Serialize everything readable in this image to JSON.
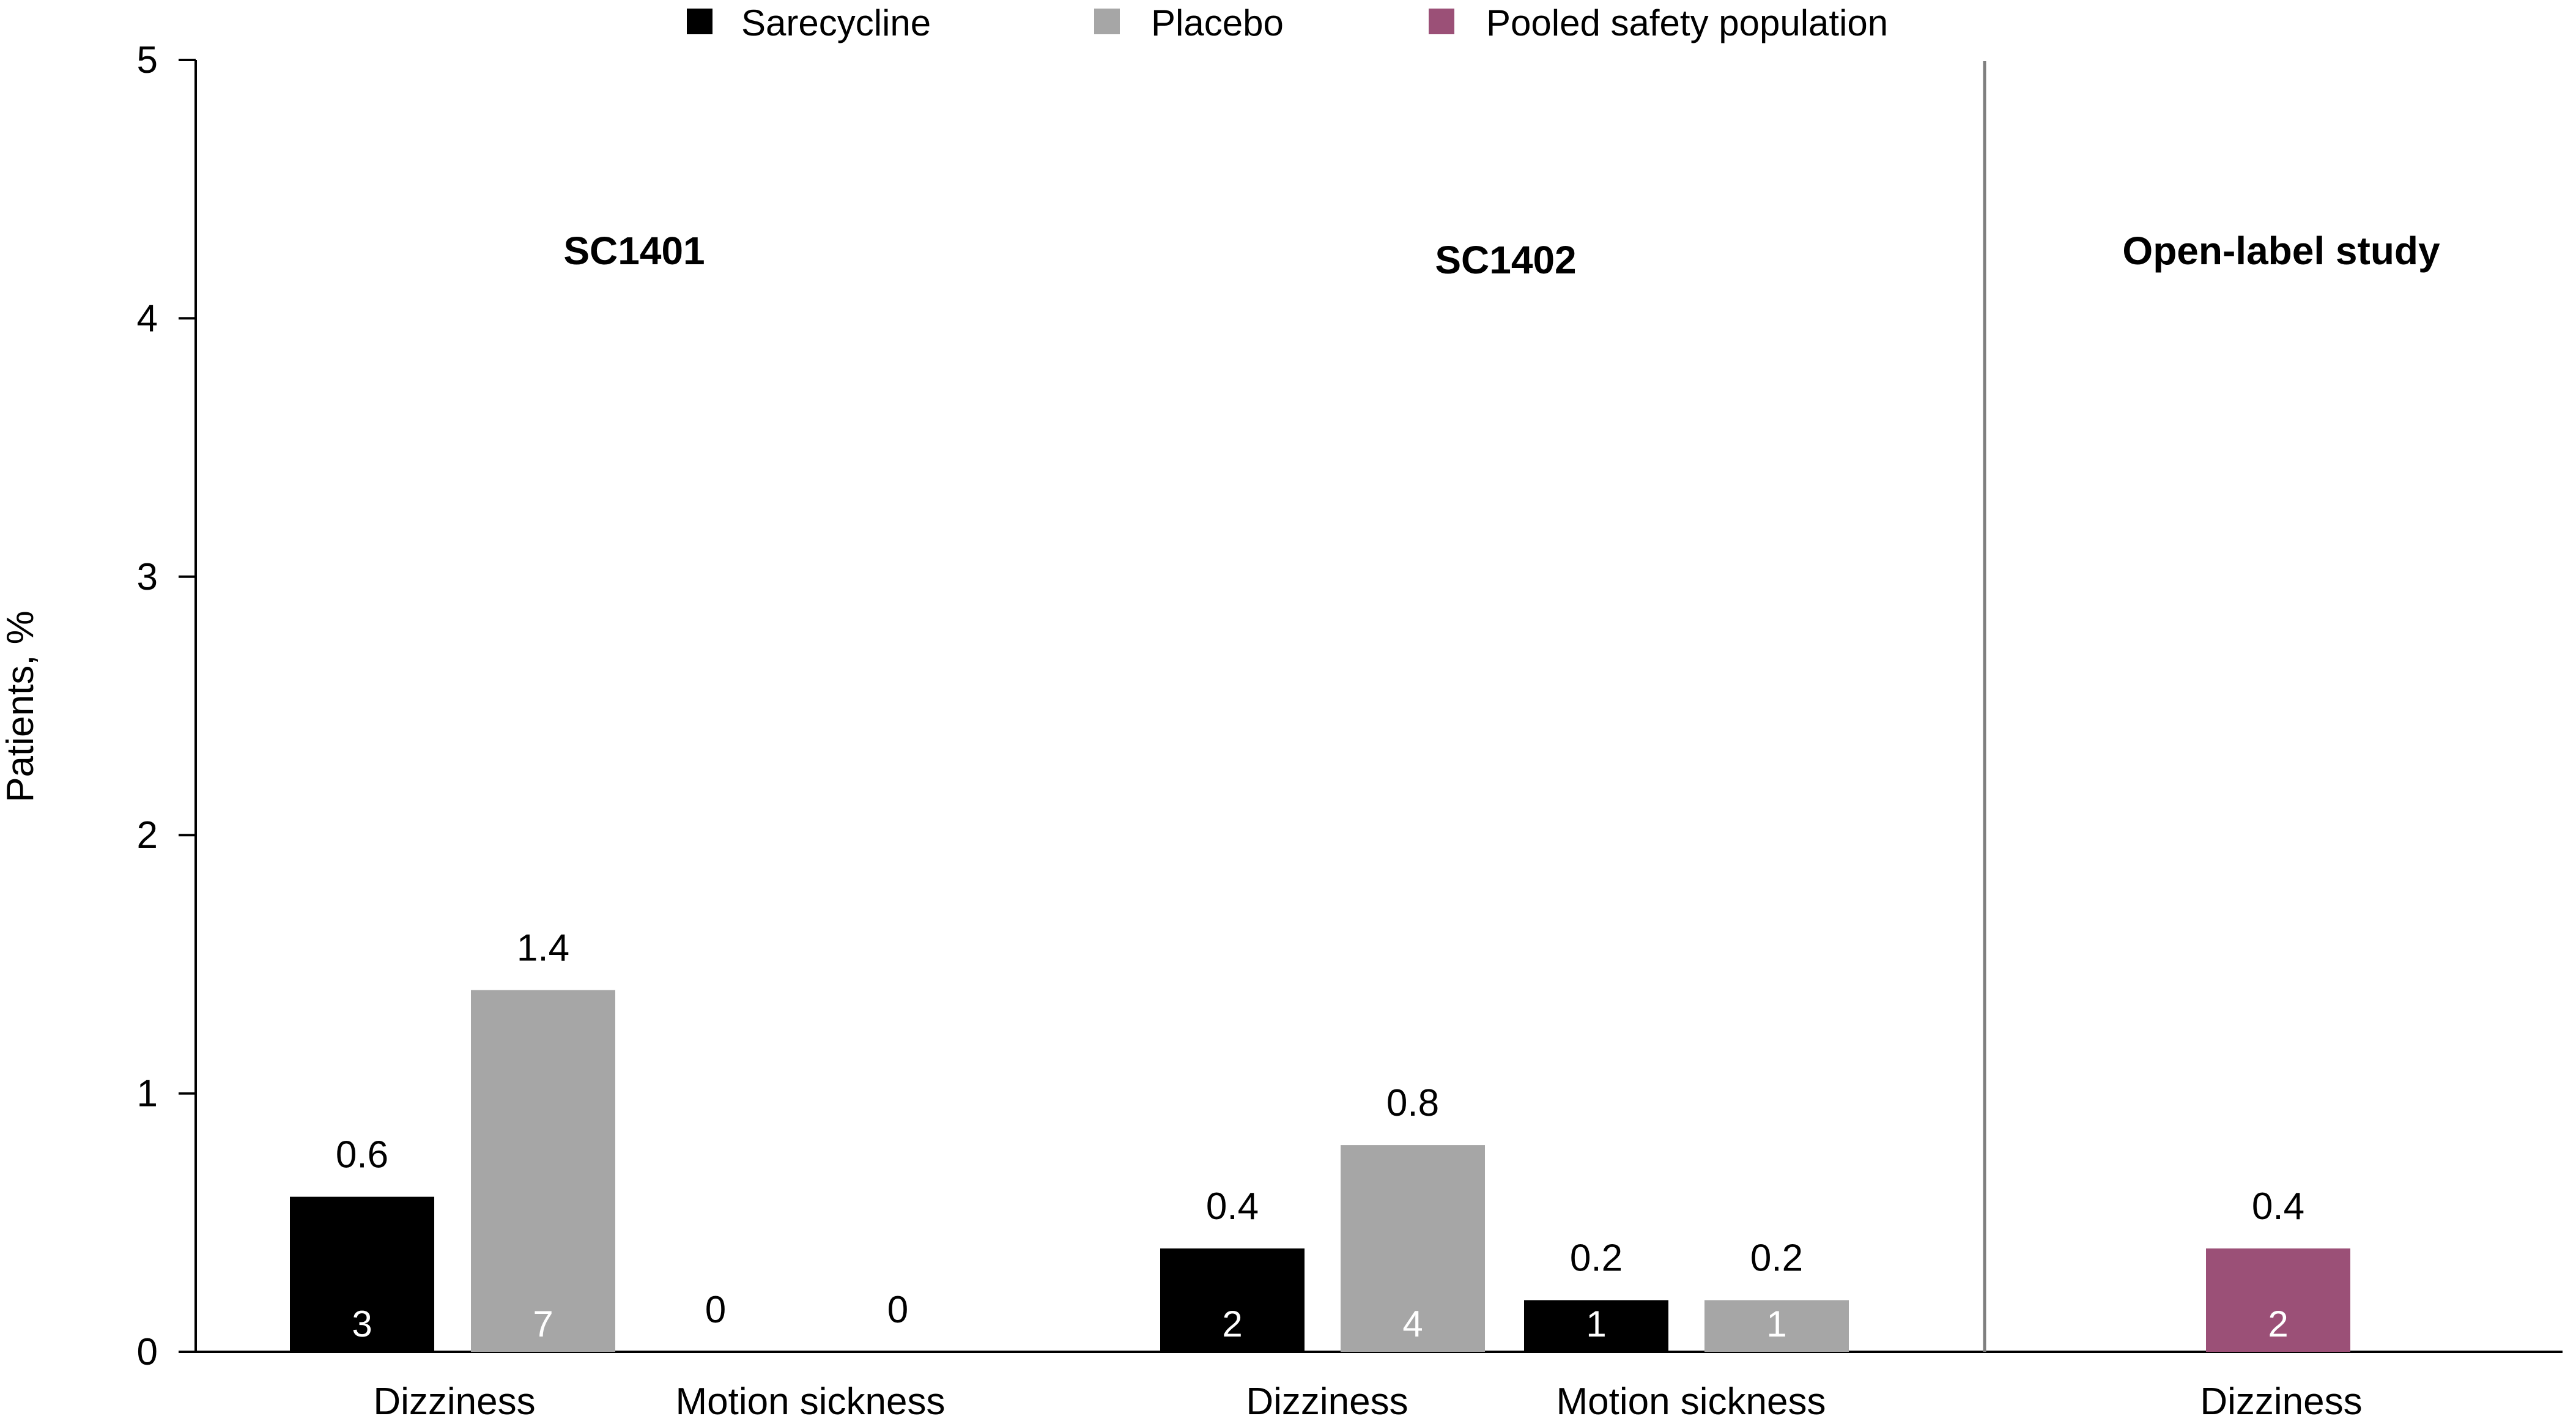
{
  "chart_data": {
    "type": "bar",
    "title": "",
    "xlabel": "",
    "ylabel": "Patients, %",
    "ylim": [
      0,
      5
    ],
    "yticks": [
      0,
      1,
      2,
      3,
      4,
      5
    ],
    "grid": false,
    "legend_position": "top",
    "series": [
      {
        "key": "sarecycline",
        "name": "Sarecycline",
        "color": "#000000",
        "label_color": "#ffffff"
      },
      {
        "key": "placebo",
        "name": "Placebo",
        "color": "#a6a6a6",
        "label_color": "#ffffff"
      },
      {
        "key": "pooled",
        "name": "Pooled safety population",
        "color": "#9b5077",
        "label_color": "#ffffff"
      }
    ],
    "groups": [
      {
        "name": "SC1401",
        "categories": [
          {
            "name": "Dizziness",
            "bars": [
              {
                "series": "sarecycline",
                "value": 0.6,
                "label": "0.6",
                "n": "3"
              },
              {
                "series": "placebo",
                "value": 1.4,
                "label": "1.4",
                "n": "7"
              }
            ]
          },
          {
            "name": "Motion sickness",
            "bars": [
              {
                "series": "sarecycline",
                "value": 0,
                "label": "0",
                "n": ""
              },
              {
                "series": "placebo",
                "value": 0,
                "label": "0",
                "n": ""
              }
            ]
          }
        ]
      },
      {
        "name": "SC1402",
        "categories": [
          {
            "name": "Dizziness",
            "bars": [
              {
                "series": "sarecycline",
                "value": 0.4,
                "label": "0.4",
                "n": "2"
              },
              {
                "series": "placebo",
                "value": 0.8,
                "label": "0.8",
                "n": "4"
              }
            ]
          },
          {
            "name": "Motion sickness",
            "bars": [
              {
                "series": "sarecycline",
                "value": 0.2,
                "label": "0.2",
                "n": "1"
              },
              {
                "series": "placebo",
                "value": 0.2,
                "label": "0.2",
                "n": "1"
              }
            ]
          }
        ]
      },
      {
        "name": "Open-label study",
        "categories": [
          {
            "name": "Dizziness",
            "bars": [
              {
                "series": "pooled",
                "value": 0.4,
                "label": "0.4",
                "n": "2"
              }
            ]
          }
        ]
      }
    ]
  }
}
